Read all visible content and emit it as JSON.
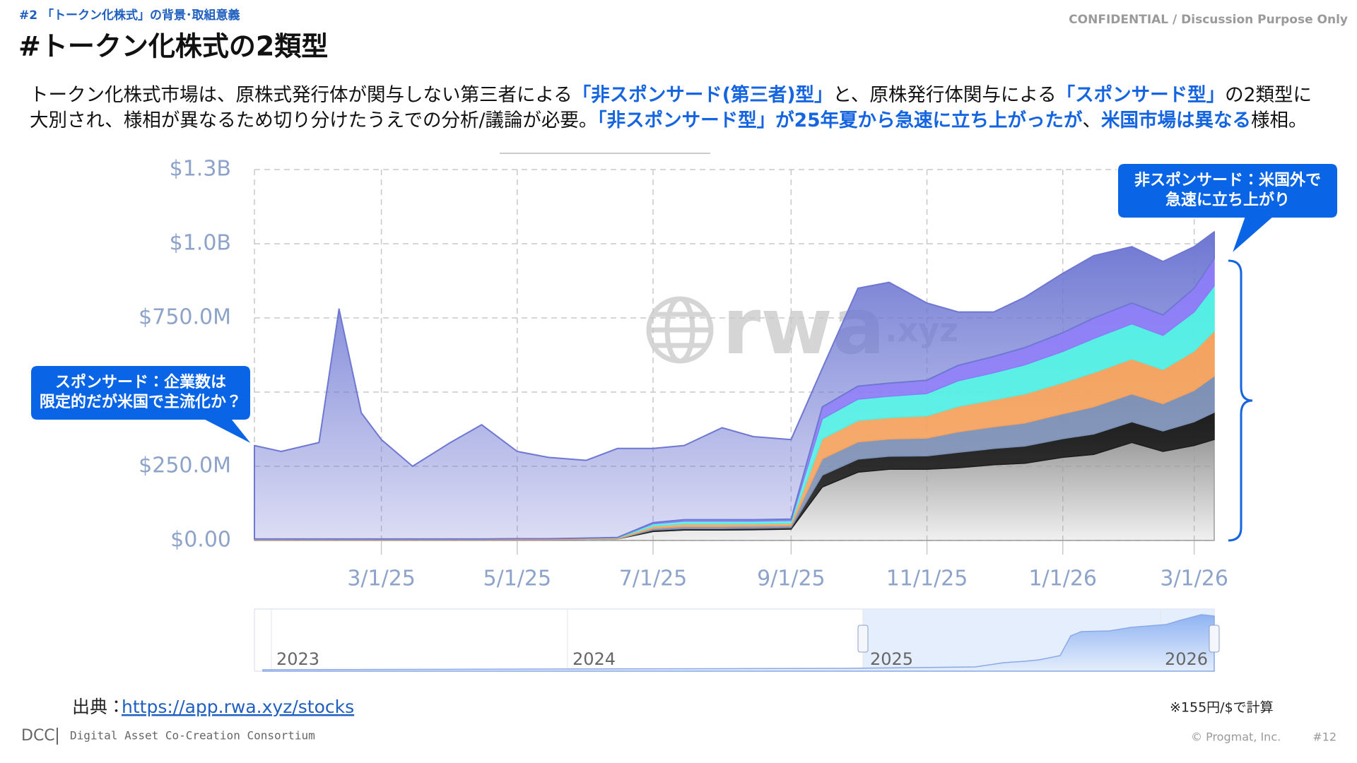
{
  "header": {
    "breadcrumb": "#2 「トークン化株式」の背景･取組意義",
    "confidential": "CONFIDENTIAL / Discussion Purpose Only",
    "title": "#トークン化株式の2類型"
  },
  "body": [
    [
      {
        "text": "トークン化株式市場は、原株式発行体が関与しない第三者による",
        "em": false
      },
      {
        "text": "「非スポンサード(第三者)型」",
        "em": true
      },
      {
        "text": "と、原株発行体関与による",
        "em": false
      },
      {
        "text": "「スポンサード型」",
        "em": true
      },
      {
        "text": "の2類型に",
        "em": false
      }
    ],
    [
      {
        "text": "大別され、様相が異なるため切り分けたうえでの分析/議論が必要。",
        "em": false
      },
      {
        "text": "「非スポンサード型」が25年夏から急速に立ち上がったが",
        "em": true
      },
      {
        "text": "、",
        "em": false
      },
      {
        "text": "米国市場は異なる",
        "em": true
      },
      {
        "text": "様相。",
        "em": false
      }
    ]
  ],
  "chart_data": {
    "type": "stacked_area",
    "watermark": [
      "rwa",
      ".xyz"
    ],
    "x": [
      "1/3/25",
      "1/15/25",
      "2/1/25",
      "2/10/25",
      "2/20/25",
      "3/1/25",
      "3/15/25",
      "4/1/25",
      "4/15/25",
      "5/1/25",
      "5/15/25",
      "6/1/25",
      "6/15/25",
      "7/1/25",
      "7/15/25",
      "8/1/25",
      "8/15/25",
      "9/1/25",
      "9/15/25",
      "10/1/25",
      "10/15/25",
      "11/1/25",
      "11/15/25",
      "12/1/25",
      "12/15/25",
      "1/1/26",
      "1/15/26",
      "2/1/26",
      "2/15/26",
      "3/1/26",
      "3/10/26"
    ],
    "xlim": [
      "1/3/25",
      "3/10/26"
    ],
    "xticks": [
      "3/1/25",
      "5/1/25",
      "7/1/25",
      "9/1/25",
      "11/1/25",
      "1/1/26",
      "3/1/26"
    ],
    "ylim": [
      0,
      1250
    ],
    "yticks": [
      {
        "value": 0,
        "label": "$0.00"
      },
      {
        "value": 250,
        "label": "$250.0M"
      },
      {
        "value": 500,
        "label": null
      },
      {
        "value": 750,
        "label": "$750.0M"
      },
      {
        "value": 1000,
        "label": "$1.0B"
      },
      {
        "value": 1250,
        "label": "$1.3B"
      }
    ],
    "grid": true,
    "series": [
      {
        "color": "#9c9c9c",
        "values": [
          3,
          3,
          3,
          3,
          3,
          3,
          3,
          3,
          3,
          3,
          3,
          4,
          5,
          30,
          35,
          35,
          36,
          38,
          180,
          230,
          240,
          240,
          245,
          255,
          260,
          280,
          290,
          330,
          300,
          320,
          340
        ]
      },
      {
        "color": "#1e1e1e",
        "values": [
          0,
          0,
          0,
          0,
          0,
          0,
          0,
          0,
          0,
          0,
          0,
          0,
          0,
          5,
          5,
          5,
          5,
          5,
          40,
          44,
          44,
          45,
          52,
          55,
          58,
          63,
          69,
          70,
          69,
          80,
          92
        ]
      },
      {
        "color": "#7d90b5",
        "values": [
          0,
          0,
          0,
          0,
          0,
          0,
          0,
          0,
          0,
          0,
          0,
          0,
          0,
          6,
          7,
          7,
          7,
          7,
          55,
          58,
          58,
          60,
          69,
          73,
          78,
          84,
          92,
          94,
          92,
          106,
          122
        ]
      },
      {
        "color": "#f4a25e",
        "values": [
          2,
          2,
          2,
          2,
          2,
          2,
          2,
          2,
          2,
          3,
          3,
          3,
          3,
          7,
          9,
          9,
          8,
          8,
          68,
          72,
          72,
          75,
          86,
          91,
          98,
          105,
          115,
          118,
          115,
          132,
          152
        ]
      },
      {
        "color": "#52eee4",
        "values": [
          0,
          0,
          0,
          0,
          0,
          0,
          0,
          0,
          0,
          0,
          0,
          1,
          2,
          8,
          9,
          9,
          9,
          9,
          67,
          72,
          72,
          75,
          86,
          91,
          98,
          105,
          115,
          118,
          115,
          132,
          152
        ]
      },
      {
        "color": "#8b7cf6",
        "values": [
          0,
          0,
          0,
          0,
          0,
          0,
          0,
          0,
          0,
          0,
          0,
          0,
          0,
          4,
          5,
          5,
          5,
          5,
          40,
          44,
          44,
          45,
          52,
          55,
          58,
          63,
          69,
          70,
          69,
          80,
          92
        ]
      },
      {
        "color": "#6e77d2",
        "values": [
          315,
          295,
          325,
          775,
          425,
          335,
          245,
          325,
          385,
          294,
          274,
          262,
          300,
          250,
          250,
          310,
          280,
          268,
          130,
          330,
          340,
          260,
          180,
          150,
          170,
          200,
          210,
          190,
          180,
          140,
          90
        ]
      }
    ],
    "navigator": {
      "years": [
        "2023",
        "2024",
        "2025",
        "2026"
      ]
    },
    "callouts": {
      "non_sponsored": [
        "非スポンサード：米国外で",
        "急速に立ち上がり"
      ],
      "sponsored": [
        "スポンサード：企業数は",
        "限定的だが米国で主流化か？"
      ]
    }
  },
  "footer": {
    "source_label": "出典：",
    "source_url": "https://app.rwa.xyz/stocks",
    "note": "※155円/$で計算",
    "org": "DCC",
    "org_full": "Digital Asset Co-Creation Consortium",
    "copyright": "©  Progmat, Inc.",
    "page": "#12"
  }
}
